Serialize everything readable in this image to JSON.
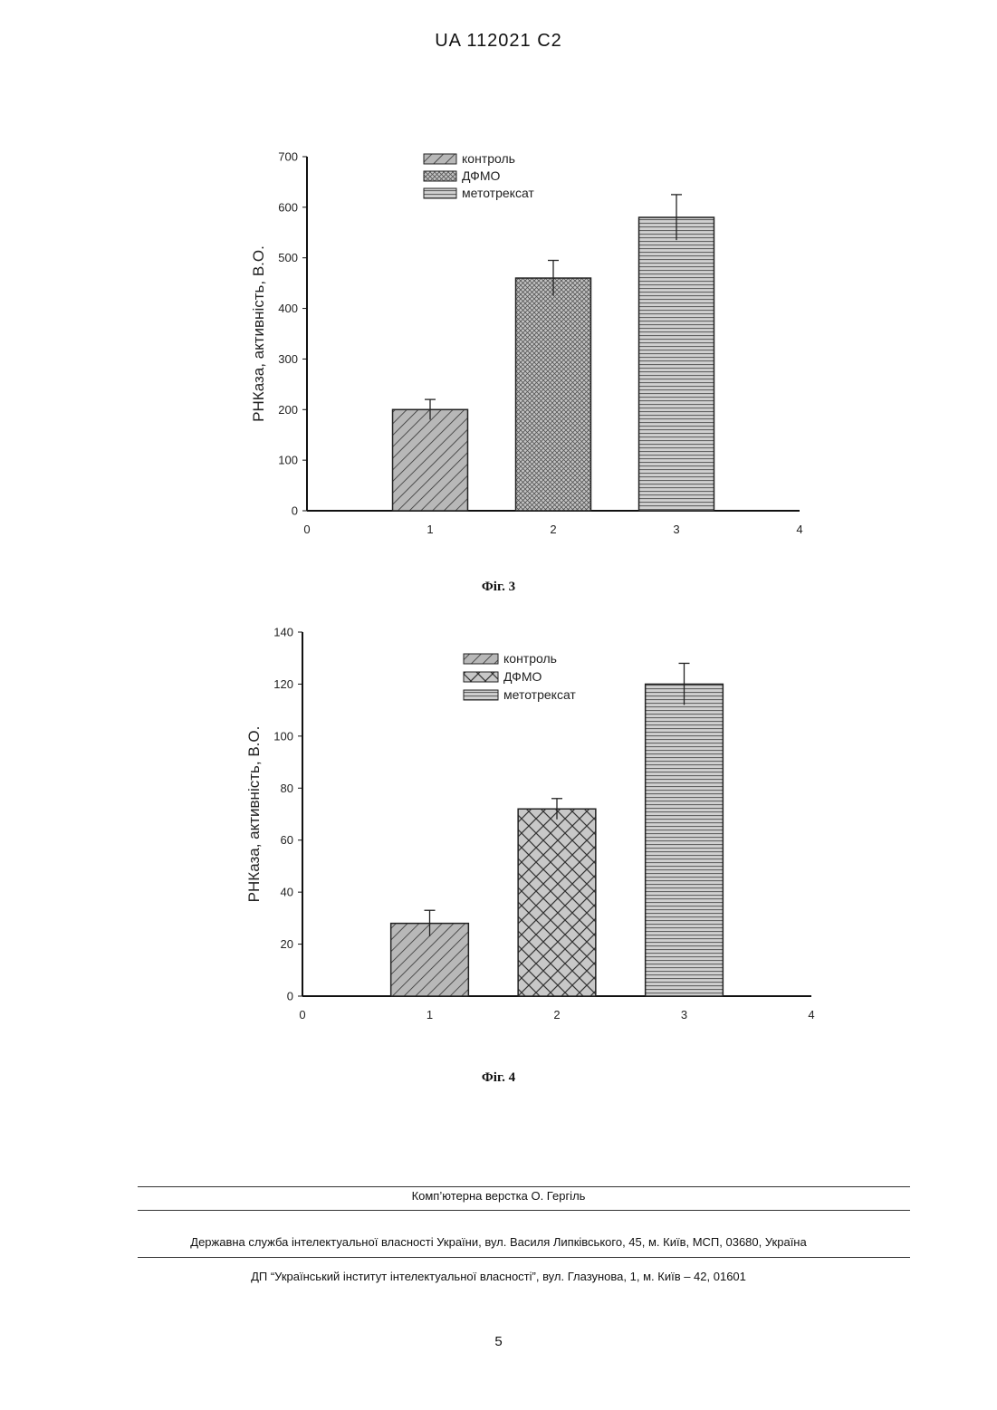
{
  "header": {
    "doc_id": "UA   112021   C2"
  },
  "figures": {
    "fig3_caption": "Фіг. 3",
    "fig4_caption": "Фіг. 4"
  },
  "chart_data": [
    {
      "type": "bar",
      "x": [
        1,
        2,
        3
      ],
      "xlim": [
        0,
        4
      ],
      "xticks": [
        0,
        1,
        2,
        3,
        4
      ],
      "series": [
        {
          "name": "контроль",
          "values": [
            200
          ],
          "x": [
            1
          ],
          "error": [
            20
          ],
          "pattern": "diagonal"
        },
        {
          "name": "ДФМО",
          "values": [
            460
          ],
          "x": [
            2
          ],
          "error": [
            35
          ],
          "pattern": "fine-crosshatch"
        },
        {
          "name": "метотрексат",
          "values": [
            580
          ],
          "x": [
            3
          ],
          "error": [
            45
          ],
          "pattern": "horizontal"
        }
      ],
      "ylabel": "РНКаза, активність, В.О.",
      "ylim": [
        0,
        700
      ],
      "yticks": [
        0,
        100,
        200,
        300,
        400,
        500,
        600,
        700
      ],
      "legend": "top-center",
      "grid": false
    },
    {
      "type": "bar",
      "x": [
        1,
        2,
        3
      ],
      "xlim": [
        0,
        4
      ],
      "xticks": [
        0,
        1,
        2,
        3,
        4
      ],
      "series": [
        {
          "name": "контроль",
          "values": [
            28
          ],
          "x": [
            1
          ],
          "error": [
            5
          ],
          "pattern": "diagonal"
        },
        {
          "name": "ДФМО",
          "values": [
            72
          ],
          "x": [
            2
          ],
          "error": [
            4
          ],
          "pattern": "crosshatch"
        },
        {
          "name": "метотрексат",
          "values": [
            120
          ],
          "x": [
            3
          ],
          "error": [
            8
          ],
          "pattern": "horizontal"
        }
      ],
      "ylabel": "РНКаза, активність, В.О.",
      "ylim": [
        0,
        140
      ],
      "yticks": [
        0,
        20,
        40,
        60,
        80,
        100,
        120,
        140
      ],
      "legend": "top-center",
      "grid": false
    }
  ],
  "footer": {
    "line1": "Комп’ютерна верстка О. Гергіль",
    "line2": "Державна служба інтелектуальної власності України, вул. Василя Липківського, 45, м. Київ, МСП, 03680, Україна",
    "line3": "ДП “Український інститут інтелектуальної власності”, вул. Глазунова, 1, м. Київ – 42, 01601",
    "page_number": "5"
  }
}
